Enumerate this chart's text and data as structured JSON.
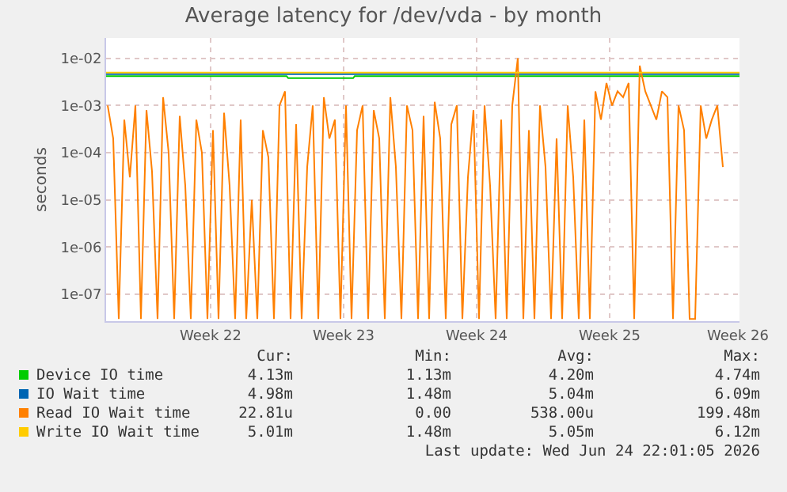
{
  "chart_data": {
    "type": "line",
    "title": "Average latency for /dev/vda - by month",
    "ylabel": "seconds",
    "log": "y",
    "grid": true,
    "legend": "bottom",
    "marker": "none",
    "line_style": "solid",
    "xlim": [
      "2026-05-23T18:00",
      "2026-06-26T02:00"
    ],
    "xticks": [
      {
        "value": "2026-05-29T06:00",
        "label": "Week 22"
      },
      {
        "value": "2026-06-05T06:00",
        "label": "Week 23"
      },
      {
        "value": "2026-06-12T06:00",
        "label": "Week 24"
      },
      {
        "value": "2026-06-19T06:00",
        "label": "Week 25"
      },
      {
        "value": "2026-06-26T00:00",
        "label": "Week 26"
      }
    ],
    "ylim": [
      2.7e-08,
      0.027
    ],
    "yticks": [
      {
        "value": 1e-07,
        "label": "1e-07"
      },
      {
        "value": 1e-06,
        "label": "1e-06"
      },
      {
        "value": 1e-05,
        "label": "1e-05"
      },
      {
        "value": 0.0001,
        "label": "1e-04"
      },
      {
        "value": 0.001,
        "label": "1e-03"
      },
      {
        "value": 0.01,
        "label": "1e-02"
      }
    ],
    "series": [
      {
        "name": "Device IO time",
        "color": "#00cc00",
        "x": [
          "2026-05-23T18:00",
          "2026-06-02T06:00",
          "2026-06-02T08:00",
          "2026-06-05T18:00",
          "2026-06-05T20:00",
          "2026-06-26T02:00"
        ],
        "values": [
          0.0042,
          0.0042,
          0.0038,
          0.0038,
          0.0042,
          0.0042
        ]
      },
      {
        "name": "IO Wait time",
        "color": "#0066b3",
        "x": [
          "2026-05-23T18:00",
          "2026-06-26T02:00"
        ],
        "values": [
          0.0046,
          0.0046
        ]
      },
      {
        "name": "Read IO Wait time",
        "color": "#ff8000",
        "x": [
          "2026-05-23T20:00",
          "2026-05-24T03:00",
          "2026-05-24T10:00",
          "2026-05-24T17:00",
          "2026-05-25T00:00",
          "2026-05-25T07:00",
          "2026-05-25T14:00",
          "2026-05-25T21:00",
          "2026-05-26T04:00",
          "2026-05-26T11:00",
          "2026-05-26T18:00",
          "2026-05-27T01:00",
          "2026-05-27T08:00",
          "2026-05-27T15:00",
          "2026-05-27T22:00",
          "2026-05-28T05:00",
          "2026-05-28T12:00",
          "2026-05-28T19:00",
          "2026-05-29T02:00",
          "2026-05-29T09:00",
          "2026-05-29T16:00",
          "2026-05-29T23:00",
          "2026-05-30T06:00",
          "2026-05-30T13:00",
          "2026-05-30T20:00",
          "2026-05-31T03:00",
          "2026-05-31T10:00",
          "2026-05-31T17:00",
          "2026-06-01T00:00",
          "2026-06-01T07:00",
          "2026-06-01T14:00",
          "2026-06-01T21:00",
          "2026-06-02T04:00",
          "2026-06-02T11:00",
          "2026-06-02T18:00",
          "2026-06-03T01:00",
          "2026-06-03T08:00",
          "2026-06-03T15:00",
          "2026-06-03T22:00",
          "2026-06-04T05:00",
          "2026-06-04T12:00",
          "2026-06-04T19:00",
          "2026-06-05T02:00",
          "2026-06-05T09:00",
          "2026-06-05T16:00",
          "2026-06-05T23:00",
          "2026-06-06T06:00",
          "2026-06-06T13:00",
          "2026-06-06T20:00",
          "2026-06-07T03:00",
          "2026-06-07T10:00",
          "2026-06-07T17:00",
          "2026-06-08T00:00",
          "2026-06-08T07:00",
          "2026-06-08T14:00",
          "2026-06-08T21:00",
          "2026-06-09T04:00",
          "2026-06-09T11:00",
          "2026-06-09T18:00",
          "2026-06-10T01:00",
          "2026-06-10T08:00",
          "2026-06-10T15:00",
          "2026-06-10T22:00",
          "2026-06-11T05:00",
          "2026-06-11T12:00",
          "2026-06-11T19:00",
          "2026-06-12T02:00",
          "2026-06-12T09:00",
          "2026-06-12T16:00",
          "2026-06-12T23:00",
          "2026-06-13T06:00",
          "2026-06-13T13:00",
          "2026-06-13T20:00",
          "2026-06-14T03:00",
          "2026-06-14T10:00",
          "2026-06-14T17:00",
          "2026-06-15T00:00",
          "2026-06-15T07:00",
          "2026-06-15T14:00",
          "2026-06-15T21:00",
          "2026-06-16T04:00",
          "2026-06-16T11:00",
          "2026-06-16T18:00",
          "2026-06-17T01:00",
          "2026-06-17T08:00",
          "2026-06-17T15:00",
          "2026-06-17T22:00",
          "2026-06-18T05:00",
          "2026-06-18T12:00",
          "2026-06-18T19:00",
          "2026-06-19T02:00",
          "2026-06-19T09:00",
          "2026-06-19T16:00",
          "2026-06-19T23:00",
          "2026-06-20T06:00",
          "2026-06-20T13:00",
          "2026-06-20T20:00",
          "2026-06-21T03:00",
          "2026-06-21T10:00",
          "2026-06-21T17:00",
          "2026-06-22T00:00",
          "2026-06-22T07:00",
          "2026-06-22T14:00",
          "2026-06-22T21:00",
          "2026-06-23T04:00",
          "2026-06-23T11:00",
          "2026-06-23T18:00",
          "2026-06-24T01:00",
          "2026-06-24T08:00",
          "2026-06-24T15:00",
          "2026-06-24T22:00",
          "2026-06-25T05:00"
        ],
        "values": [
          0.001,
          0.0002,
          3e-08,
          0.0005,
          3e-05,
          0.001,
          3e-08,
          0.0008,
          4e-05,
          3e-08,
          0.0015,
          0.0001,
          3e-08,
          0.0006,
          2e-05,
          3e-08,
          0.0005,
          0.0001,
          3e-08,
          0.0003,
          3e-08,
          0.0007,
          2e-05,
          3e-08,
          0.0005,
          3e-08,
          1e-05,
          3e-08,
          0.0003,
          8e-05,
          3e-08,
          0.001,
          0.002,
          3e-08,
          0.0004,
          3e-08,
          5e-05,
          0.001,
          3e-08,
          0.0015,
          0.0002,
          0.0005,
          3e-08,
          0.001,
          3e-08,
          0.0003,
          0.001,
          3e-08,
          0.0008,
          0.0002,
          3e-08,
          0.0015,
          5e-05,
          3e-08,
          0.001,
          0.0003,
          3e-08,
          0.0006,
          3e-08,
          0.0012,
          0.0002,
          3e-08,
          0.0004,
          0.001,
          3e-08,
          3e-05,
          0.0008,
          3e-08,
          0.001,
          2e-05,
          3e-08,
          0.0005,
          3e-08,
          0.001,
          0.01,
          3e-08,
          0.0003,
          3e-08,
          0.001,
          5e-05,
          3e-08,
          0.0002,
          3e-08,
          0.001,
          3e-05,
          3e-08,
          0.0005,
          3e-08,
          0.002,
          0.0005,
          0.003,
          0.001,
          0.002,
          0.0015,
          0.003,
          3e-08,
          0.007,
          0.002,
          0.001,
          0.0005,
          0.002,
          0.0015,
          3e-08,
          0.001,
          0.0003,
          3e-08,
          3e-08,
          0.001,
          0.0002,
          0.0005,
          0.001,
          5e-05
        ]
      },
      {
        "name": "Write IO Wait time",
        "color": "#ffcc00",
        "x": [
          "2026-05-23T18:00",
          "2026-06-26T02:00"
        ],
        "values": [
          0.005,
          0.005
        ]
      }
    ],
    "annotations": [
      "Cur:",
      "Min:",
      "Avg:",
      "Max:",
      "4.13m",
      "1.13m",
      "4.20m",
      "4.74m",
      "4.98m",
      "1.48m",
      "5.04m",
      "6.09m",
      "22.81u",
      "0.00",
      "538.00u",
      "199.48m",
      "5.01m",
      "1.48m",
      "5.05m",
      "6.12m",
      "Last update: Wed Jun 24 22:01:05 2026"
    ]
  }
}
